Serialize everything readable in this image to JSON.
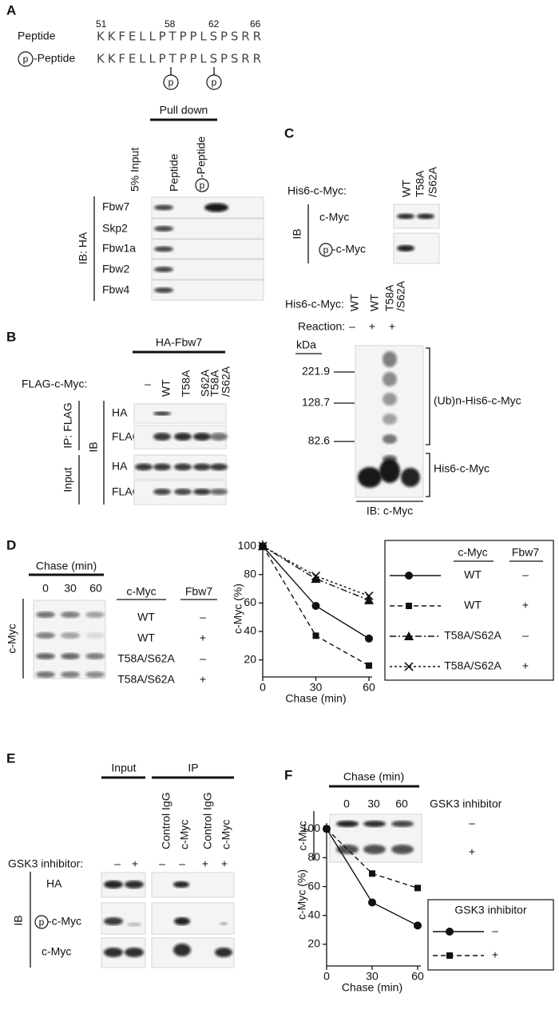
{
  "phospho": "p",
  "panels": {
    "A": {
      "label": "A",
      "positions": [
        "51",
        "58",
        "62",
        "66"
      ],
      "peptide_label": "Peptide",
      "p_peptide_label": "-Peptide",
      "sequence": "KKFELLPTPPLSPSRR",
      "pull_down": "Pull down",
      "lanes": [
        "5% Input",
        "Peptide",
        "-Peptide"
      ],
      "rows": [
        "Fbw7",
        "Skp2",
        "Fbw1a",
        "Fbw2",
        "Fbw4"
      ],
      "ib": "IB: HA"
    },
    "B": {
      "label": "B",
      "group": "HA-Fbw7",
      "lane_header": "FLAG-c-Myc:",
      "lanes": [
        "–",
        "WT",
        "T58A",
        "S62A",
        [
          "T58A",
          "/S62A"
        ]
      ],
      "rows": [
        "HA",
        "FLAG",
        "HA",
        "FLAG"
      ],
      "ib": "IB",
      "groups": [
        "IP: FLAG",
        "Input"
      ]
    },
    "C": {
      "label": "C",
      "top": {
        "lane_header": "His6-c-Myc:",
        "lanes": [
          "WT",
          [
            "T58A",
            "/S62A"
          ]
        ],
        "rows": [
          "c-Myc",
          "-c-Myc"
        ],
        "ib": "IB"
      },
      "bottom": {
        "lane_header": "His6-c-Myc:",
        "lanes": [
          "WT",
          "WT",
          [
            "T58A",
            "/S62A"
          ]
        ],
        "reaction_label": "Reaction:",
        "reaction": [
          "–",
          "+",
          "+"
        ],
        "kda": "kDa",
        "markers": [
          "221.9",
          "128.7",
          "82.6"
        ],
        "labels": [
          "(Ub)n-His6-c-Myc",
          "His6-c-Myc"
        ],
        "ib": "IB: c-Myc"
      }
    },
    "D": {
      "label": "D",
      "chase": "Chase (min)",
      "times": [
        "0",
        "30",
        "60"
      ],
      "blot_label": "c-Myc",
      "header": [
        "c-Myc",
        "Fbw7"
      ],
      "rows": [
        [
          "WT",
          "–"
        ],
        [
          "WT",
          "+"
        ],
        [
          "T58A/S62A",
          "–"
        ],
        [
          "T58A/S62A",
          "+"
        ]
      ]
    },
    "E": {
      "label": "E",
      "groups": [
        "Input",
        "IP"
      ],
      "lanes": [
        "Control IgG",
        "c-Myc",
        "Control IgG",
        "c-Myc"
      ],
      "treatment_label": "GSK3 inhibitor:",
      "treatment": [
        "–",
        "+",
        "–",
        "–",
        "+",
        "+"
      ],
      "rows": [
        "HA",
        "-c-Myc",
        "c-Myc"
      ],
      "ib": "IB"
    },
    "F": {
      "label": "F",
      "chase": "Chase (min)",
      "times": [
        "0",
        "30",
        "60"
      ],
      "treatment_label": "GSK3 inhibitor",
      "treatment": [
        "–",
        "+"
      ],
      "blot_label": "c-Myc"
    }
  },
  "chart_data": [
    {
      "type": "line",
      "x_label": "Chase (min)",
      "y_label": "c-Myc (%)",
      "x": [
        0,
        30,
        60
      ],
      "xlim": [
        0,
        60
      ],
      "ylim": [
        8,
        104
      ],
      "xticks": [
        0,
        30,
        60
      ],
      "yticks": [
        20,
        40,
        60,
        80,
        100
      ],
      "legend_header": [
        "c-Myc",
        "Fbw7"
      ],
      "series": [
        {
          "name": "WT",
          "fbw7": "–",
          "color": "#111111",
          "marker": "circle",
          "linestyle": "solid",
          "values": [
            100,
            58,
            35
          ]
        },
        {
          "name": "WT",
          "fbw7": "+",
          "color": "#111111",
          "marker": "square",
          "linestyle": "dashed",
          "values": [
            100,
            37,
            16
          ]
        },
        {
          "name": "T58A/S62A",
          "fbw7": "–",
          "color": "#111111",
          "marker": "triangle",
          "linestyle": "dashdot",
          "values": [
            100,
            77,
            62
          ]
        },
        {
          "name": "T58A/S62A",
          "fbw7": "+",
          "color": "#111111",
          "marker": "x",
          "linestyle": "dotted",
          "values": [
            100,
            79,
            65
          ]
        }
      ]
    },
    {
      "type": "line",
      "x_label": "Chase (min)",
      "y_label": "c-Myc (%)",
      "x": [
        0,
        30,
        60
      ],
      "xlim": [
        0,
        60
      ],
      "ylim": [
        5,
        104
      ],
      "xticks": [
        0,
        30,
        60
      ],
      "yticks": [
        20,
        40,
        60,
        80,
        100
      ],
      "legend_title": "GSK3 inhibitor",
      "series": [
        {
          "name": "–",
          "color": "#111111",
          "marker": "circle",
          "linestyle": "solid",
          "values": [
            100,
            49,
            33
          ]
        },
        {
          "name": "+",
          "color": "#111111",
          "marker": "square",
          "linestyle": "dashed",
          "values": [
            100,
            69,
            59
          ]
        }
      ]
    }
  ]
}
